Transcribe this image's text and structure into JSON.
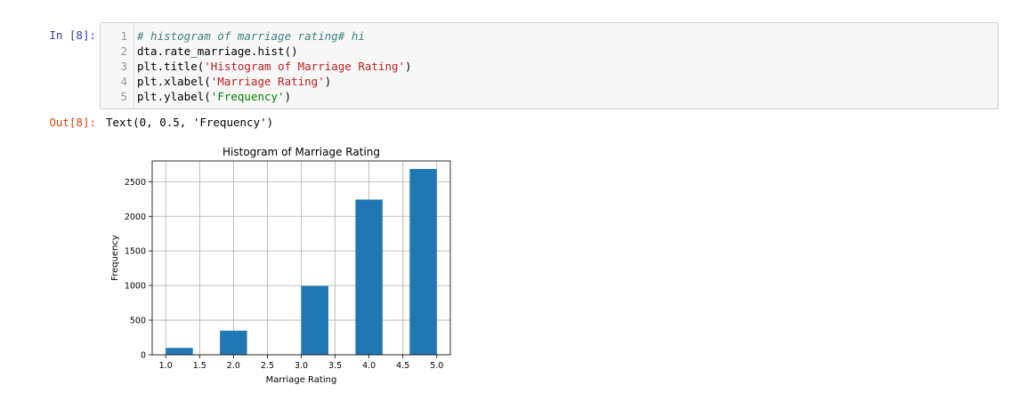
{
  "input_cell": {
    "prompt": "In [8]:",
    "lines": [
      {
        "num": "1",
        "segments": [
          {
            "text": "# histogram of marriage rating# hi",
            "cls": "c-comment"
          }
        ]
      },
      {
        "num": "2",
        "segments": [
          {
            "text": "dta.rate_marriage.hist()",
            "cls": ""
          }
        ]
      },
      {
        "num": "3",
        "segments": [
          {
            "text": "plt.title(",
            "cls": ""
          },
          {
            "text": "'Histogram of Marriage Rating'",
            "cls": "c-str"
          },
          {
            "text": ")",
            "cls": ""
          }
        ]
      },
      {
        "num": "4",
        "segments": [
          {
            "text": "plt.xlabel(",
            "cls": ""
          },
          {
            "text": "'Marriage Rating'",
            "cls": "c-str"
          },
          {
            "text": ")",
            "cls": ""
          }
        ]
      },
      {
        "num": "5",
        "segments": [
          {
            "text": "plt.ylabel(",
            "cls": ""
          },
          {
            "text": "'Frequency'",
            "cls": "c-str2"
          },
          {
            "text": ")",
            "cls": ""
          }
        ]
      }
    ]
  },
  "output_cell": {
    "prompt": "Out[8]:",
    "text": "Text(0, 0.5, 'Frequency')"
  },
  "chart_data": {
    "type": "bar",
    "title": "Histogram of Marriage Rating",
    "xlabel": "Marriage Rating",
    "ylabel": "Frequency",
    "bar_color": "#1f77b4",
    "grid": true,
    "xlim": [
      0.8,
      5.2
    ],
    "ylim": [
      0,
      2800
    ],
    "xticks": [
      "1.0",
      "1.5",
      "2.0",
      "2.5",
      "3.0",
      "3.5",
      "4.0",
      "4.5",
      "5.0"
    ],
    "yticks": [
      "0",
      "500",
      "1000",
      "1500",
      "2000",
      "2500"
    ],
    "bins": [
      {
        "start": 1.0,
        "end": 1.4,
        "value": 99
      },
      {
        "start": 1.4,
        "end": 1.8,
        "value": 0
      },
      {
        "start": 1.8,
        "end": 2.2,
        "value": 348
      },
      {
        "start": 2.2,
        "end": 2.6,
        "value": 0
      },
      {
        "start": 2.6,
        "end": 3.0,
        "value": 0
      },
      {
        "start": 3.0,
        "end": 3.4,
        "value": 993
      },
      {
        "start": 3.4,
        "end": 3.8,
        "value": 0
      },
      {
        "start": 3.8,
        "end": 4.2,
        "value": 2242
      },
      {
        "start": 4.2,
        "end": 4.6,
        "value": 0
      },
      {
        "start": 4.6,
        "end": 5.0,
        "value": 2684
      }
    ]
  }
}
